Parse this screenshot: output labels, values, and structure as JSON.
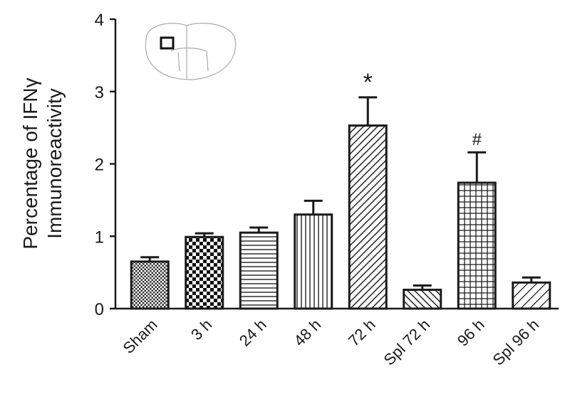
{
  "chart_data": {
    "type": "bar",
    "y_label": [
      "Percentage of IFNγ",
      "Immunoreactivity"
    ],
    "categories": [
      "Sham",
      "3 h",
      "24 h",
      "48 h",
      "72 h",
      "Spl 72 h",
      "96 h",
      "Spl 96 h"
    ],
    "values": [
      0.65,
      0.99,
      1.05,
      1.3,
      2.53,
      0.26,
      1.74,
      0.36
    ],
    "errors": [
      0.06,
      0.05,
      0.07,
      0.19,
      0.39,
      0.06,
      0.42,
      0.07
    ],
    "color": "#1a1a1a",
    "ylim": [
      0,
      4
    ],
    "yticks": [
      0,
      1,
      2,
      3,
      4
    ],
    "annotations": [
      {
        "text": "*",
        "category": "72 h"
      },
      {
        "text": "#",
        "category": "96 h"
      }
    ]
  }
}
